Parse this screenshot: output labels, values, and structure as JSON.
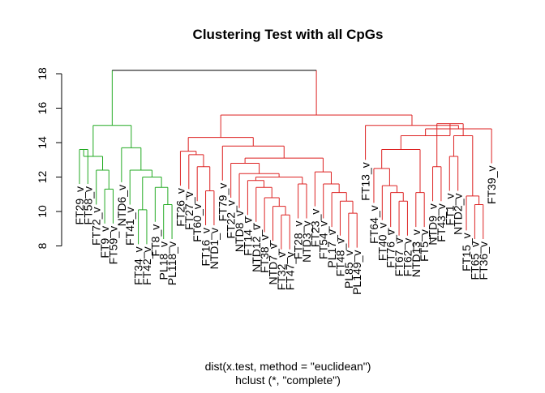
{
  "chart_data": {
    "type": "dendrogram",
    "title": "Clustering Test with all CpGs",
    "xlabel": "dist(x.test, method = \"euclidean\")",
    "sublabel": "hclust (*, \"complete\")",
    "ylim": [
      8,
      18.5
    ],
    "yticks": [
      8,
      10,
      12,
      14,
      16,
      18
    ],
    "colors": {
      "green": "#22aa22",
      "red": "#dd2222",
      "black": "#000000"
    },
    "leaves": [
      {
        "label": "FT29_v",
        "color": "green"
      },
      {
        "label": "FT58_v",
        "color": "green"
      },
      {
        "label": "FT72_v",
        "color": "green"
      },
      {
        "label": "FT9_v",
        "color": "green"
      },
      {
        "label": "FT59_v",
        "color": "green"
      },
      {
        "label": "NTD6_v",
        "color": "green"
      },
      {
        "label": "FT41_v",
        "color": "green"
      },
      {
        "label": "FT34_v",
        "color": "green"
      },
      {
        "label": "FT42_v",
        "color": "green"
      },
      {
        "label": "FT8_v",
        "color": "green"
      },
      {
        "label": "PL18_v",
        "color": "green"
      },
      {
        "label": "PL118_v",
        "color": "green"
      },
      {
        "label": "FT26_v",
        "color": "red"
      },
      {
        "label": "FT27_v",
        "color": "red"
      },
      {
        "label": "FT60_v",
        "color": "red"
      },
      {
        "label": "FT16_v",
        "color": "red"
      },
      {
        "label": "NTD1_v",
        "color": "red"
      },
      {
        "label": "FT79_v",
        "color": "red"
      },
      {
        "label": "FT22_v",
        "color": "red"
      },
      {
        "label": "NTD8_v",
        "color": "red"
      },
      {
        "label": "FT14_v",
        "color": "red"
      },
      {
        "label": "NTD12_v",
        "color": "red"
      },
      {
        "label": "FT38_v",
        "color": "red"
      },
      {
        "label": "NTD7_v",
        "color": "red"
      },
      {
        "label": "FT32_v",
        "color": "red"
      },
      {
        "label": "FT47_v",
        "color": "red"
      },
      {
        "label": "FT28_v",
        "color": "red"
      },
      {
        "label": "NTD3_v",
        "color": "red"
      },
      {
        "label": "FT23_v",
        "color": "red"
      },
      {
        "label": "FT54_v",
        "color": "red"
      },
      {
        "label": "PL17_v",
        "color": "red"
      },
      {
        "label": "FT48_v",
        "color": "red"
      },
      {
        "label": "PL85_v",
        "color": "red"
      },
      {
        "label": "PL149_v",
        "color": "red"
      },
      {
        "label": "FT13_v",
        "color": "red"
      },
      {
        "label": "FT64_v",
        "color": "red"
      },
      {
        "label": "FT40_v",
        "color": "red"
      },
      {
        "label": "FT76_v",
        "color": "red"
      },
      {
        "label": "FT67_v",
        "color": "red"
      },
      {
        "label": "FT62_v",
        "color": "red"
      },
      {
        "label": "NTD13_v",
        "color": "red"
      },
      {
        "label": "FT5_v",
        "color": "red"
      },
      {
        "label": "NTD9_v",
        "color": "red"
      },
      {
        "label": "FT43_v",
        "color": "red"
      },
      {
        "label": "FT1_v",
        "color": "red"
      },
      {
        "label": "NTD2_v",
        "color": "red"
      },
      {
        "label": "FT15_v",
        "color": "red"
      },
      {
        "label": "FT65_v",
        "color": "red"
      },
      {
        "label": "FT36_v",
        "color": "red"
      },
      {
        "label": "FT39_v",
        "color": "red"
      }
    ],
    "merges": [
      {
        "a": 1,
        "b": 2,
        "h": 13.6
      },
      {
        "a": 4,
        "b": 5,
        "h": 11.3
      },
      {
        "a": 3,
        "b": "m2",
        "h": 12.4
      },
      {
        "a": "m1",
        "b": "m3",
        "h": 13.2
      },
      {
        "a": 11,
        "b": 12,
        "h": 10.4
      },
      {
        "a": 10,
        "b": "m5",
        "h": 11.4
      },
      {
        "a": 9,
        "b": 8,
        "h": 10.1
      },
      {
        "a": "m7",
        "b": "m6",
        "h": 12.0
      },
      {
        "a": 7,
        "b": "m8",
        "h": 12.4
      },
      {
        "a": 6,
        "b": "m9",
        "h": 13.7
      },
      {
        "a": "m4",
        "b": "m10",
        "h": 15.0
      },
      {
        "a": 16,
        "b": 17,
        "h": 11.2
      },
      {
        "a": 15,
        "b": "m12",
        "h": 12.6
      },
      {
        "a": 14,
        "b": "m13",
        "h": 13.3
      },
      {
        "a": 13,
        "b": "m14",
        "h": 13.5
      },
      {
        "a": 25,
        "b": 26,
        "h": 9.8
      },
      {
        "a": 24,
        "b": "m16",
        "h": 10.3
      },
      {
        "a": 23,
        "b": "m17",
        "h": 10.8
      },
      {
        "a": 22,
        "b": "m18",
        "h": 11.4
      },
      {
        "a": 21,
        "b": "m19",
        "h": 11.8
      },
      {
        "a": 27,
        "b": 28,
        "h": 11.6
      },
      {
        "a": "m20",
        "b": "m21",
        "h": 12.0
      },
      {
        "a": 20,
        "b": "m22",
        "h": 12.2
      },
      {
        "a": 19,
        "b": "m23",
        "h": 12.8
      },
      {
        "a": 33,
        "b": 34,
        "h": 9.9
      },
      {
        "a": 32,
        "b": "m25",
        "h": 10.6
      },
      {
        "a": 31,
        "b": "m26",
        "h": 11.1
      },
      {
        "a": 30,
        "b": "m27",
        "h": 11.6
      },
      {
        "a": 29,
        "b": "m28",
        "h": 12.3
      },
      {
        "a": "m24",
        "b": "m29",
        "h": 13.1
      },
      {
        "a": 18,
        "b": "m30",
        "h": 13.8
      },
      {
        "a": "m15",
        "b": "m31",
        "h": 14.3
      },
      {
        "a": 39,
        "b": 40,
        "h": 10.6
      },
      {
        "a": 38,
        "b": "m33",
        "h": 11.1
      },
      {
        "a": 37,
        "b": "m34",
        "h": 11.5
      },
      {
        "a": 36,
        "b": "m35",
        "h": 12.5
      },
      {
        "a": 41,
        "b": 42,
        "h": 11.1
      },
      {
        "a": "m36",
        "b": "m37",
        "h": 13.6
      },
      {
        "a": 43,
        "b": 44,
        "h": 12.6
      },
      {
        "a": 45,
        "b": 46,
        "h": 13.2
      },
      {
        "a": 48,
        "b": 49,
        "h": 10.4
      },
      {
        "a": 47,
        "b": "m41",
        "h": 10.9
      },
      {
        "a": "m40",
        "b": "m42",
        "h": 14.4
      },
      {
        "a": "m39",
        "b": "m43",
        "h": 15.1
      },
      {
        "a": "m38",
        "b": "m44",
        "h": 14.4
      },
      {
        "a": 50,
        "b": "m45",
        "h": 14.8
      },
      {
        "a": 35,
        "b": "m46",
        "h": 15.0
      },
      {
        "a": "m32",
        "b": "m47",
        "h": 15.6
      },
      {
        "a": "m11",
        "b": "m48",
        "h": 18.2
      }
    ]
  }
}
